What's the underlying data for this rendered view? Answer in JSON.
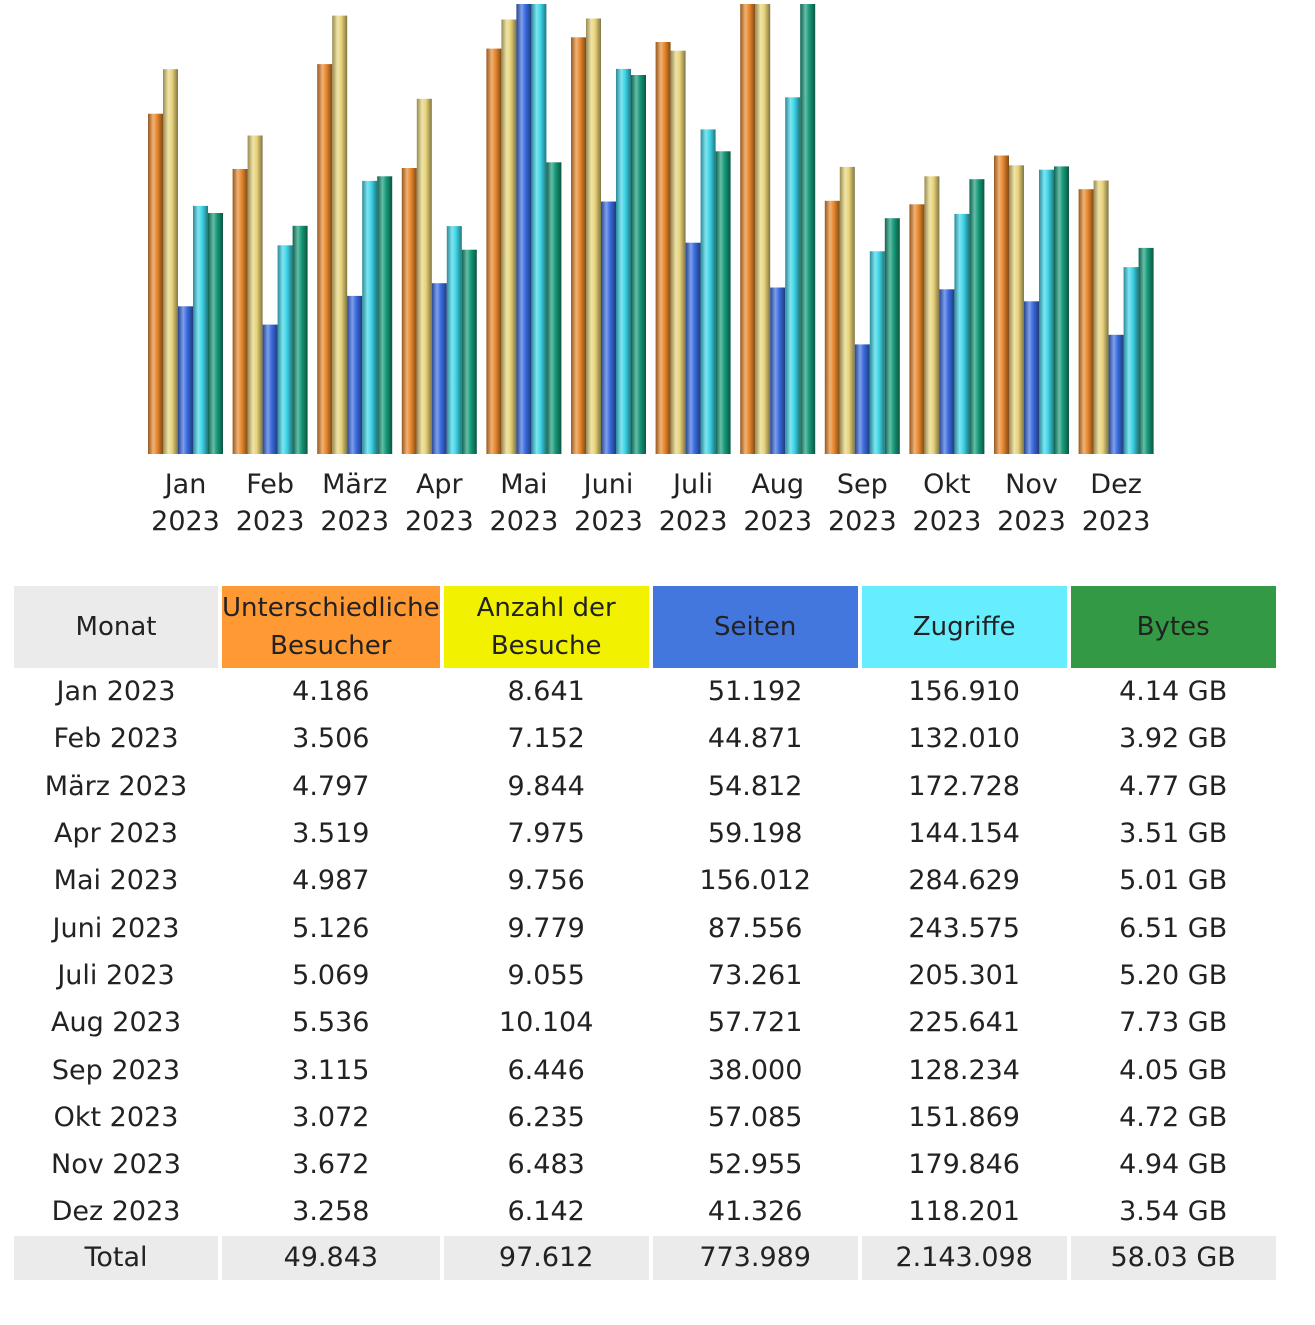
{
  "chart_data": {
    "type": "bar",
    "categories": [
      [
        "Jan",
        "2023"
      ],
      [
        "Feb",
        "2023"
      ],
      [
        "März",
        "2023"
      ],
      [
        "Apr",
        "2023"
      ],
      [
        "Mai",
        "2023"
      ],
      [
        "Juni",
        "2023"
      ],
      [
        "Juli",
        "2023"
      ],
      [
        "Aug",
        "2023"
      ],
      [
        "Sep",
        "2023"
      ],
      [
        "Okt",
        "2023"
      ],
      [
        "Nov",
        "2023"
      ],
      [
        "Dez",
        "2023"
      ]
    ],
    "series": [
      {
        "name": "Unterschiedliche Besucher",
        "color": "#e8882c",
        "values": [
          4186,
          3506,
          4797,
          3519,
          4987,
          5126,
          5069,
          5536,
          3115,
          3072,
          3672,
          3258
        ]
      },
      {
        "name": "Anzahl der Besuche",
        "color": "#e8d47a",
        "values": [
          8641,
          7152,
          9844,
          7975,
          9756,
          9779,
          9055,
          10104,
          6446,
          6235,
          6483,
          6142
        ]
      },
      {
        "name": "Seiten",
        "color": "#3a6be0",
        "values": [
          51192,
          44871,
          54812,
          59198,
          156012,
          87556,
          73261,
          57721,
          38000,
          57085,
          52955,
          41326
        ]
      },
      {
        "name": "Zugriffe",
        "color": "#3ed6e8",
        "values": [
          156910,
          132010,
          172728,
          144154,
          284629,
          243575,
          205301,
          225641,
          128234,
          151869,
          179846,
          118201
        ]
      },
      {
        "name": "Bytes",
        "color": "#159a78",
        "values": [
          4.14,
          3.92,
          4.77,
          3.51,
          5.01,
          6.51,
          5.2,
          7.73,
          4.05,
          4.72,
          4.94,
          3.54
        ]
      }
    ],
    "grid": false,
    "legend": "none"
  },
  "table": {
    "headers": [
      {
        "label": [
          "Monat"
        ],
        "bg": "#ebebeb",
        "color": "#222222"
      },
      {
        "label": [
          "Unterschiedliche",
          "Besucher"
        ],
        "bg": "#ff9933",
        "color": "#222222"
      },
      {
        "label": [
          "Anzahl der",
          "Besuche"
        ],
        "bg": "#f2f200",
        "color": "#222222"
      },
      {
        "label": [
          "Seiten"
        ],
        "bg": "#4477dd",
        "color": "#222222"
      },
      {
        "label": [
          "Zugriffe"
        ],
        "bg": "#66eeff",
        "color": "#222222"
      },
      {
        "label": [
          "Bytes"
        ],
        "bg": "#339944",
        "color": "#222222"
      }
    ],
    "rows": [
      [
        "Jan 2023",
        "4.186",
        "8.641",
        "51.192",
        "156.910",
        "4.14 GB"
      ],
      [
        "Feb 2023",
        "3.506",
        "7.152",
        "44.871",
        "132.010",
        "3.92 GB"
      ],
      [
        "März 2023",
        "4.797",
        "9.844",
        "54.812",
        "172.728",
        "4.77 GB"
      ],
      [
        "Apr 2023",
        "3.519",
        "7.975",
        "59.198",
        "144.154",
        "3.51 GB"
      ],
      [
        "Mai 2023",
        "4.987",
        "9.756",
        "156.012",
        "284.629",
        "5.01 GB"
      ],
      [
        "Juni 2023",
        "5.126",
        "9.779",
        "87.556",
        "243.575",
        "6.51 GB"
      ],
      [
        "Juli 2023",
        "5.069",
        "9.055",
        "73.261",
        "205.301",
        "5.20 GB"
      ],
      [
        "Aug 2023",
        "5.536",
        "10.104",
        "57.721",
        "225.641",
        "7.73 GB"
      ],
      [
        "Sep 2023",
        "3.115",
        "6.446",
        "38.000",
        "128.234",
        "4.05 GB"
      ],
      [
        "Okt 2023",
        "3.072",
        "6.235",
        "57.085",
        "151.869",
        "4.72 GB"
      ],
      [
        "Nov 2023",
        "3.672",
        "6.483",
        "52.955",
        "179.846",
        "4.94 GB"
      ],
      [
        "Dez 2023",
        "3.258",
        "6.142",
        "41.326",
        "118.201",
        "3.54 GB"
      ]
    ],
    "total": [
      "Total",
      "49.843",
      "97.612",
      "773.989",
      "2.143.098",
      "58.03 GB"
    ]
  }
}
